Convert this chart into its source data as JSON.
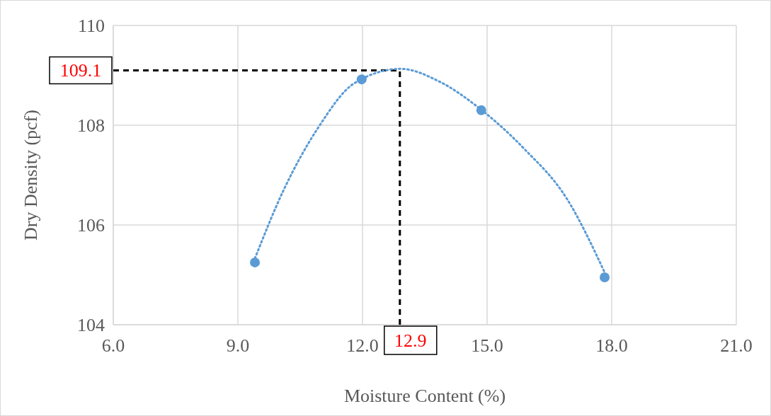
{
  "chart_data": {
    "type": "scatter",
    "xlabel": "Moisture Content (%)",
    "ylabel": "Dry Density (pcf)",
    "xlim": [
      6,
      21
    ],
    "xticks": [
      {
        "value": 6,
        "label": "6.0"
      },
      {
        "value": 9,
        "label": "9.0"
      },
      {
        "value": 12,
        "label": "12.0"
      },
      {
        "value": 15,
        "label": "15.0"
      },
      {
        "value": 18,
        "label": "18.0"
      },
      {
        "value": 21,
        "label": "21.0"
      }
    ],
    "ylim": [
      104,
      110
    ],
    "yticks": [
      104,
      106,
      108,
      110
    ],
    "grid": true,
    "series": [
      {
        "marker": "circle",
        "color": "#5b9bd5",
        "x": [
          9.41,
          11.98,
          14.86,
          17.83
        ],
        "values": [
          105.25,
          108.92,
          108.3,
          104.95
        ]
      },
      {
        "type": "line",
        "marker": "none",
        "color": "#5b9bd5",
        "line_style": "dotted",
        "x": [
          9.41,
          10.09,
          10.94,
          11.8,
          12.92,
          13.84,
          14.86,
          15.89,
          16.91,
          17.83
        ],
        "values": [
          105.33,
          106.68,
          107.96,
          108.84,
          109.13,
          108.88,
          108.31,
          107.53,
          106.54,
          105.05
        ]
      }
    ],
    "ref_lines": [
      {
        "axis": "y",
        "value": 109.1,
        "label": "109.1",
        "color": "#000000",
        "line_style": "dashed"
      },
      {
        "axis": "x",
        "value": 12.9,
        "label": "12.9",
        "color": "#000000",
        "line_style": "dashed"
      }
    ]
  }
}
